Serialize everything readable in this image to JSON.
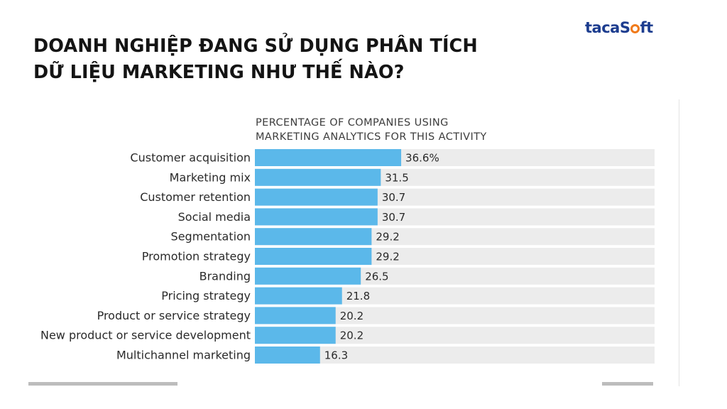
{
  "slide": {
    "title_line1": "DOANH NGHIỆP ĐANG SỬ DỤNG PHÂN TÍCH",
    "title_line2": "DỮ LIỆU MARKETING NHƯ THẾ NÀO?",
    "logo_part1": "tac",
    "logo_part2": "a",
    "logo_part3": "S",
    "logo_part4": "ft",
    "logo_colors": {
      "text": "#1d3d8f",
      "accent": "#f07a1a"
    }
  },
  "chart_data": {
    "type": "bar",
    "orientation": "horizontal",
    "title_line1": "PERCENTAGE OF COMPANIES USING",
    "title_line2": "MARKETING ANALYTICS FOR THIS ACTIVITY",
    "categories": [
      "Customer acquisition",
      "Marketing mix",
      "Customer retention",
      "Social media",
      "Segmentation",
      "Promotion strategy",
      "Branding",
      "Pricing strategy",
      "Product or service strategy",
      "New product or service development",
      "Multichannel marketing"
    ],
    "values": [
      36.6,
      31.5,
      30.7,
      30.7,
      29.2,
      29.2,
      26.5,
      21.8,
      20.2,
      20.2,
      16.3
    ],
    "value_labels": [
      "36.6%",
      "31.5",
      "30.7",
      "30.7",
      "29.2",
      "29.2",
      "26.5",
      "21.8",
      "20.2",
      "20.2",
      "16.3"
    ],
    "xlim": [
      0,
      100
    ],
    "grid": false,
    "legend": "none",
    "colors": {
      "bar": "#5bb8ea",
      "track": "#ececec",
      "text": "#2a2a2a"
    }
  }
}
